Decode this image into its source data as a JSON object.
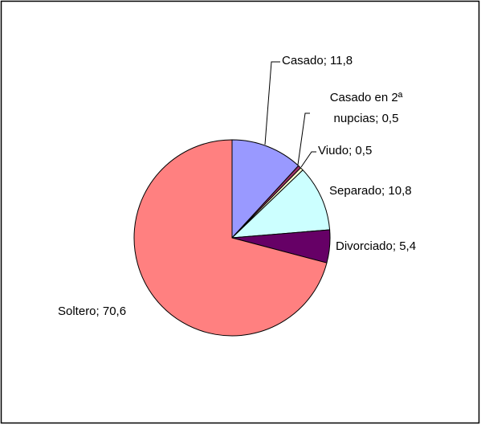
{
  "chart_data": {
    "type": "pie",
    "values": [
      11.8,
      0.5,
      0.5,
      10.8,
      5.4,
      70.6
    ],
    "value_labels": [
      "Casado; 11,8",
      "Casado en 2ª nupcias; 0,5",
      "Viudo; 0,5",
      "Separado; 10,8",
      "Divorciado; 5,4",
      "Soltero; 70,6"
    ],
    "colors": [
      "#9999ff",
      "#993366",
      "#ffffcc",
      "#ccffff",
      "#660066",
      "#ff8080"
    ]
  }
}
